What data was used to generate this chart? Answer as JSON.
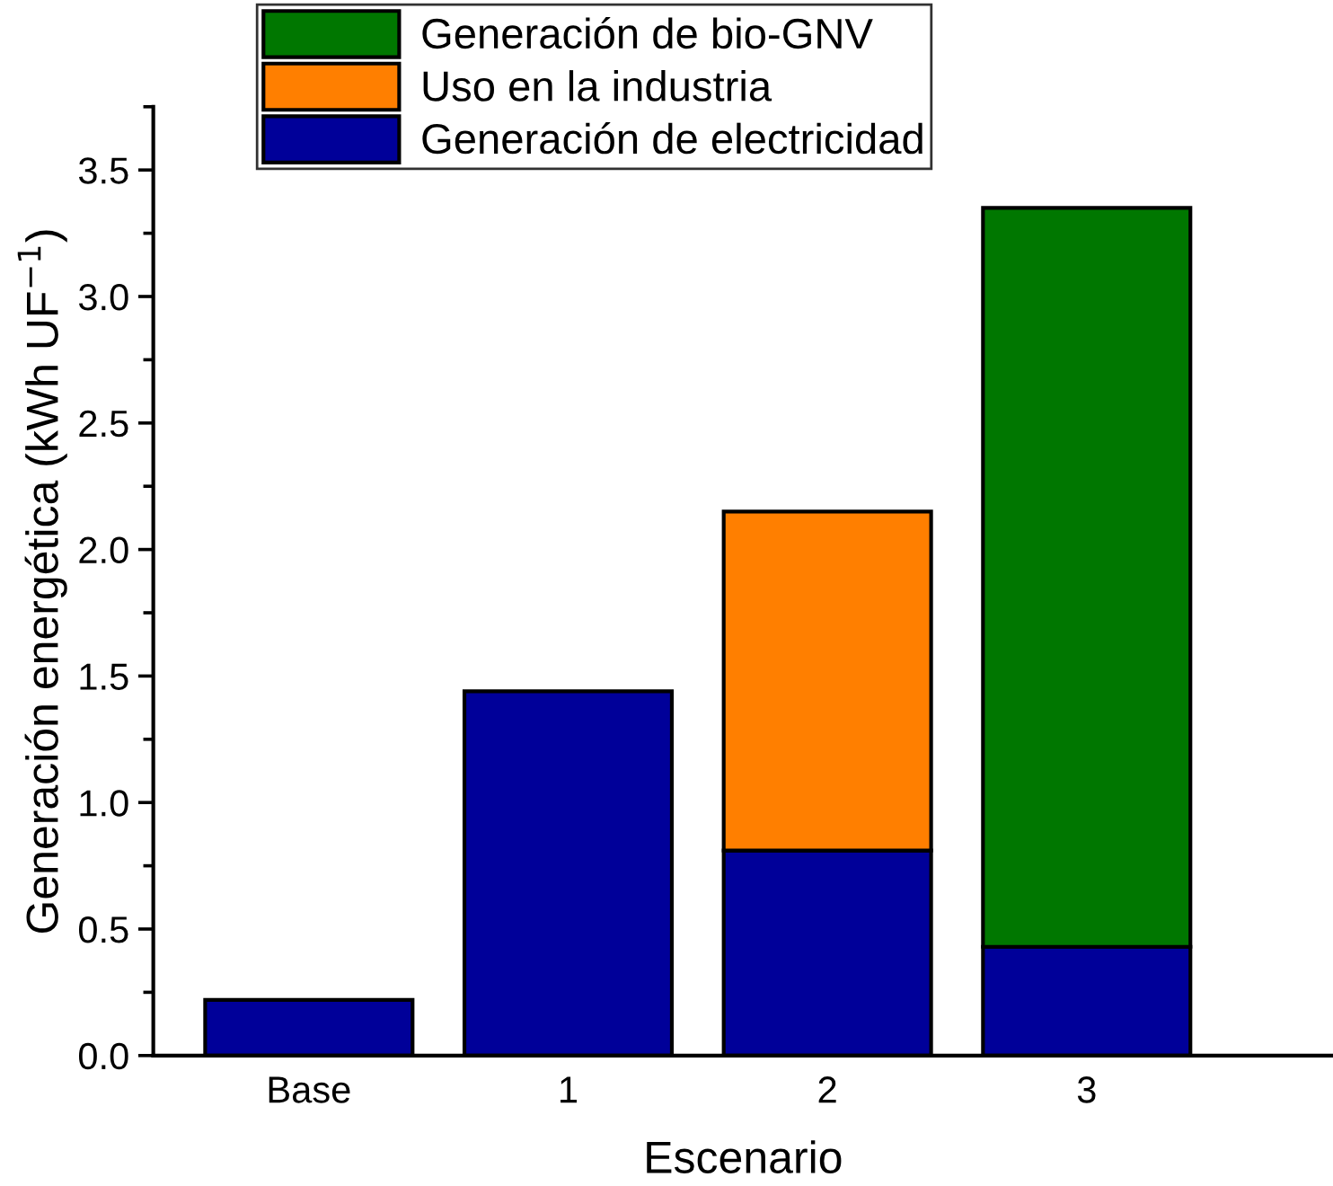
{
  "chart_data": {
    "type": "bar",
    "stacked": true,
    "xlabel": "Escenario",
    "ylabel": "Generación energética (kWh UF$^{−1}$)",
    "categories": [
      "Base",
      "1",
      "2",
      "3"
    ],
    "series": [
      {
        "name": "Generación de electricidad",
        "color": "#000099",
        "values": [
          0.22,
          1.44,
          0.81,
          0.43
        ]
      },
      {
        "name": "Uso en la industria",
        "color": "#ff7f00",
        "values": [
          0,
          0,
          1.34,
          0
        ]
      },
      {
        "name": "Generación de bio-GNV",
        "color": "#007700",
        "values": [
          0,
          0,
          0,
          2.92
        ]
      }
    ],
    "ylim": [
      0,
      3.75
    ],
    "yticks": [
      {
        "value": 0,
        "label": "0.0"
      },
      0.5,
      {
        "value": 1,
        "label": "1.0"
      },
      1.5,
      {
        "value": 2,
        "label": "2.0"
      },
      2.5,
      {
        "value": 3,
        "label": "3.0"
      },
      3.5
    ],
    "grid": false,
    "legend": "top left"
  }
}
